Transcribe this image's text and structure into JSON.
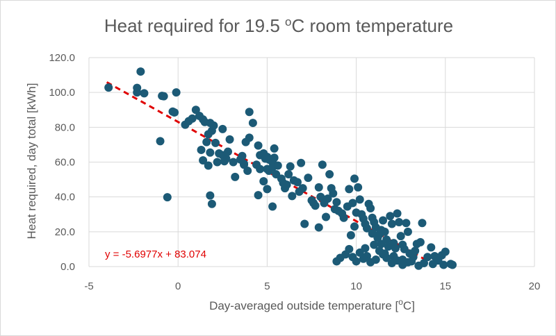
{
  "chart_data": {
    "type": "scatter",
    "title": "Heat  required for 19.5 °C room temperature",
    "title_parts": [
      "Heat  required for 19.5 ",
      "o",
      "C room temperature"
    ],
    "xlabel": "Day-averaged outside temperature [°C]",
    "xlabel_parts": [
      "Day-averaged outside temperature [",
      "o",
      "C]"
    ],
    "ylabel": "Heat required, day total [kWh]",
    "xlim": [
      -5,
      20
    ],
    "ylim": [
      0,
      120
    ],
    "x_ticks": [
      -5,
      0,
      5,
      10,
      15,
      20
    ],
    "x_tick_labels": [
      "-5",
      "0",
      "5",
      "10",
      "15",
      "20"
    ],
    "y_ticks": [
      0,
      20,
      40,
      60,
      80,
      100,
      120
    ],
    "y_tick_labels": [
      "0.0",
      "20.0",
      "40.0",
      "60.0",
      "80.0",
      "100.0",
      "120.0"
    ],
    "grid": true,
    "legend": "none",
    "marker_color": "#1c5a76",
    "trendline": {
      "type": "linear",
      "slope": -5.6977,
      "intercept": 83.074,
      "x_range": [
        -4.0,
        14.5
      ],
      "color": "#e00000",
      "style": "dashed",
      "equation_label": "y = -5.6977x + 83.074"
    },
    "points": [
      [
        -3.9,
        102.8
      ],
      [
        -2.3,
        102.6
      ],
      [
        -2.3,
        100.0
      ],
      [
        -2.1,
        112.0
      ],
      [
        -1.9,
        99.5
      ],
      [
        -0.9,
        98.0
      ],
      [
        -0.8,
        97.8
      ],
      [
        -0.1,
        100.0
      ],
      [
        -0.3,
        89.0
      ],
      [
        -0.2,
        88.5
      ],
      [
        -1.0,
        72.0
      ],
      [
        -0.6,
        39.8
      ],
      [
        0.4,
        81.5
      ],
      [
        0.6,
        83.5
      ],
      [
        0.8,
        85.0
      ],
      [
        1.0,
        90.0
      ],
      [
        1.2,
        86.5
      ],
      [
        1.4,
        84.5
      ],
      [
        1.5,
        83.0
      ],
      [
        1.8,
        82.5
      ],
      [
        1.9,
        78.0
      ],
      [
        2.0,
        81.0
      ],
      [
        1.7,
        76.0
      ],
      [
        2.5,
        79.0
      ],
      [
        2.9,
        73.0
      ],
      [
        1.3,
        67.0
      ],
      [
        1.6,
        71.5
      ],
      [
        1.8,
        65.5
      ],
      [
        2.1,
        71.0
      ],
      [
        2.3,
        65.0
      ],
      [
        2.5,
        64.0
      ],
      [
        2.7,
        62.0
      ],
      [
        2.8,
        66.0
      ],
      [
        3.1,
        60.0
      ],
      [
        1.4,
        61.0
      ],
      [
        1.7,
        58.0
      ],
      [
        2.2,
        60.0
      ],
      [
        2.6,
        60.5
      ],
      [
        3.2,
        51.5
      ],
      [
        1.8,
        40.8
      ],
      [
        1.9,
        36.0
      ],
      [
        3.7,
        59.0
      ],
      [
        3.7,
        58.5
      ],
      [
        3.8,
        71.5
      ],
      [
        4.0,
        88.8
      ],
      [
        4.2,
        82.5
      ],
      [
        4.0,
        74.0
      ],
      [
        4.5,
        69.5
      ],
      [
        4.6,
        64.0
      ],
      [
        4.8,
        65.0
      ],
      [
        4.9,
        62.0
      ],
      [
        5.0,
        63.0
      ],
      [
        5.1,
        61.5
      ],
      [
        5.2,
        61.0
      ],
      [
        5.3,
        60.0
      ],
      [
        5.4,
        62.5
      ],
      [
        5.4,
        67.8
      ],
      [
        5.0,
        56.0
      ],
      [
        5.1,
        55.0
      ],
      [
        5.3,
        57.0
      ],
      [
        5.5,
        53.0
      ],
      [
        5.6,
        58.0
      ],
      [
        4.4,
        58.5
      ],
      [
        4.6,
        56.0
      ],
      [
        4.8,
        49.0
      ],
      [
        5.0,
        44.5
      ],
      [
        4.5,
        41.0
      ],
      [
        5.3,
        34.5
      ],
      [
        5.8,
        50.5
      ],
      [
        6.0,
        45.0
      ],
      [
        6.2,
        53.0
      ],
      [
        6.3,
        57.5
      ],
      [
        6.5,
        49.5
      ],
      [
        6.7,
        48.5
      ],
      [
        6.9,
        59.5
      ],
      [
        7.0,
        45.0
      ],
      [
        7.1,
        24.5
      ],
      [
        7.3,
        51.0
      ],
      [
        7.5,
        38.0
      ],
      [
        7.7,
        35.0
      ],
      [
        7.9,
        45.5
      ],
      [
        8.0,
        40.0
      ],
      [
        8.1,
        58.5
      ],
      [
        8.2,
        36.5
      ],
      [
        8.4,
        39.0
      ],
      [
        8.5,
        53.0
      ],
      [
        8.6,
        45.0
      ],
      [
        8.7,
        42.0
      ],
      [
        8.9,
        37.0
      ],
      [
        9.0,
        32.0
      ],
      [
        9.2,
        30.5
      ],
      [
        9.3,
        28.0
      ],
      [
        9.5,
        34.5
      ],
      [
        9.6,
        44.5
      ],
      [
        9.8,
        36.5
      ],
      [
        9.9,
        50.5
      ],
      [
        10.0,
        31.0
      ],
      [
        10.1,
        45.5
      ],
      [
        10.2,
        38.5
      ],
      [
        10.3,
        30.0
      ],
      [
        10.4,
        27.5
      ],
      [
        10.5,
        24.5
      ],
      [
        10.6,
        22.0
      ],
      [
        10.7,
        36.0
      ],
      [
        10.8,
        33.5
      ],
      [
        10.9,
        28.0
      ],
      [
        11.0,
        25.5
      ],
      [
        11.1,
        22.5
      ],
      [
        11.2,
        16.5
      ],
      [
        11.3,
        18.5
      ],
      [
        11.4,
        13.0
      ],
      [
        11.5,
        26.5
      ],
      [
        11.6,
        20.0
      ],
      [
        11.7,
        15.5
      ],
      [
        11.8,
        11.5
      ],
      [
        11.9,
        29.0
      ],
      [
        12.0,
        24.5
      ],
      [
        12.1,
        13.5
      ],
      [
        12.2,
        10.5
      ],
      [
        12.3,
        30.5
      ],
      [
        12.4,
        25.5
      ],
      [
        12.5,
        17.5
      ],
      [
        12.6,
        12.5
      ],
      [
        12.7,
        10.0
      ],
      [
        12.8,
        25.0
      ],
      [
        12.9,
        20.0
      ],
      [
        13.0,
        7.5
      ],
      [
        13.2,
        5.5
      ],
      [
        13.4,
        13.0
      ],
      [
        13.7,
        25.0
      ],
      [
        13.6,
        14.0
      ],
      [
        14.0,
        5.5
      ],
      [
        14.2,
        11.0
      ],
      [
        14.4,
        6.0
      ],
      [
        14.6,
        3.5
      ],
      [
        14.8,
        6.5
      ],
      [
        15.0,
        8.5
      ],
      [
        15.3,
        1.5
      ],
      [
        15.4,
        1.0
      ],
      [
        14.9,
        1.0
      ],
      [
        14.3,
        1.5
      ],
      [
        13.5,
        0.5
      ],
      [
        12.9,
        2.5
      ],
      [
        12.6,
        1.0
      ],
      [
        12.3,
        3.5
      ],
      [
        12.0,
        2.0
      ],
      [
        11.7,
        5.0
      ],
      [
        11.5,
        7.0
      ],
      [
        11.3,
        9.0
      ],
      [
        11.1,
        4.0
      ],
      [
        10.8,
        2.5
      ],
      [
        10.6,
        6.0
      ],
      [
        10.4,
        4.5
      ],
      [
        10.2,
        8.0
      ],
      [
        10.0,
        3.0
      ],
      [
        9.8,
        5.5
      ],
      [
        9.6,
        10.0
      ],
      [
        9.4,
        7.0
      ],
      [
        9.1,
        5.0
      ],
      [
        8.9,
        3.0
      ],
      [
        10.5,
        10.5
      ],
      [
        11.0,
        12.5
      ],
      [
        11.6,
        7.5
      ],
      [
        12.1,
        6.0
      ],
      [
        12.6,
        4.0
      ],
      [
        13.1,
        3.0
      ],
      [
        13.3,
        9.0
      ],
      [
        13.8,
        2.0
      ],
      [
        10.9,
        19.0
      ],
      [
        11.4,
        21.0
      ],
      [
        9.7,
        18.0
      ],
      [
        9.9,
        23.0
      ],
      [
        8.3,
        28.5
      ],
      [
        8.8,
        33.0
      ],
      [
        7.6,
        36.5
      ],
      [
        7.9,
        22.5
      ],
      [
        6.8,
        43.0
      ],
      [
        6.4,
        40.5
      ],
      [
        5.9,
        48.0
      ],
      [
        3.9,
        55.0
      ],
      [
        3.5,
        61.5
      ],
      [
        3.6,
        63.5
      ],
      [
        6.1,
        47.0
      ]
    ]
  }
}
